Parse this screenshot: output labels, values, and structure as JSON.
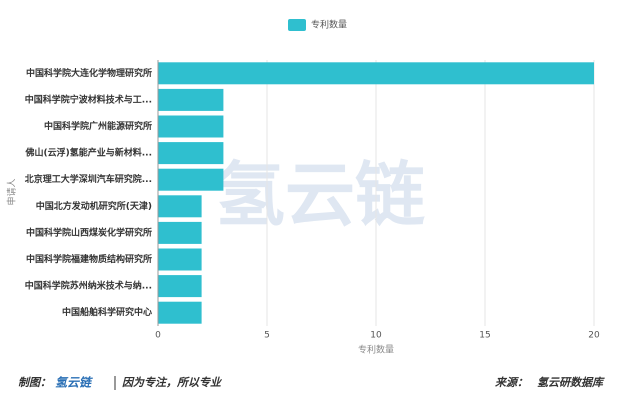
{
  "chart_data": {
    "type": "bar",
    "orientation": "horizontal",
    "legend": "专利数量",
    "xlabel": "专利数量",
    "ylabel": "申请人",
    "watermark": "氢云链",
    "categories": [
      "中国科学院大连化学物理研究所",
      "中国科学院宁波材料技术与工...",
      "中国科学院广州能源研究所",
      "佛山(云浮)氢能产业与新材料...",
      "北京理工大学深圳汽车研究院...",
      "中国北方发动机研究所(天津)",
      "中国科学院山西煤炭化学研究所",
      "中国科学院福建物质结构研究所",
      "中国科学院苏州纳米技术与纳...",
      "中国船舶科学研究中心"
    ],
    "values": [
      20,
      3,
      3,
      3,
      3,
      2,
      2,
      2,
      2,
      2
    ],
    "color": "#2fbfcf",
    "xlim": [
      0,
      20
    ],
    "xticks": [
      0,
      5,
      10,
      15,
      20
    ],
    "grid": true
  },
  "footer": {
    "made_by": "制图：",
    "brand": "氢云链",
    "slogan": "因为专注，所以专业",
    "source_label": "来源：",
    "source": "氢云研数据库"
  }
}
